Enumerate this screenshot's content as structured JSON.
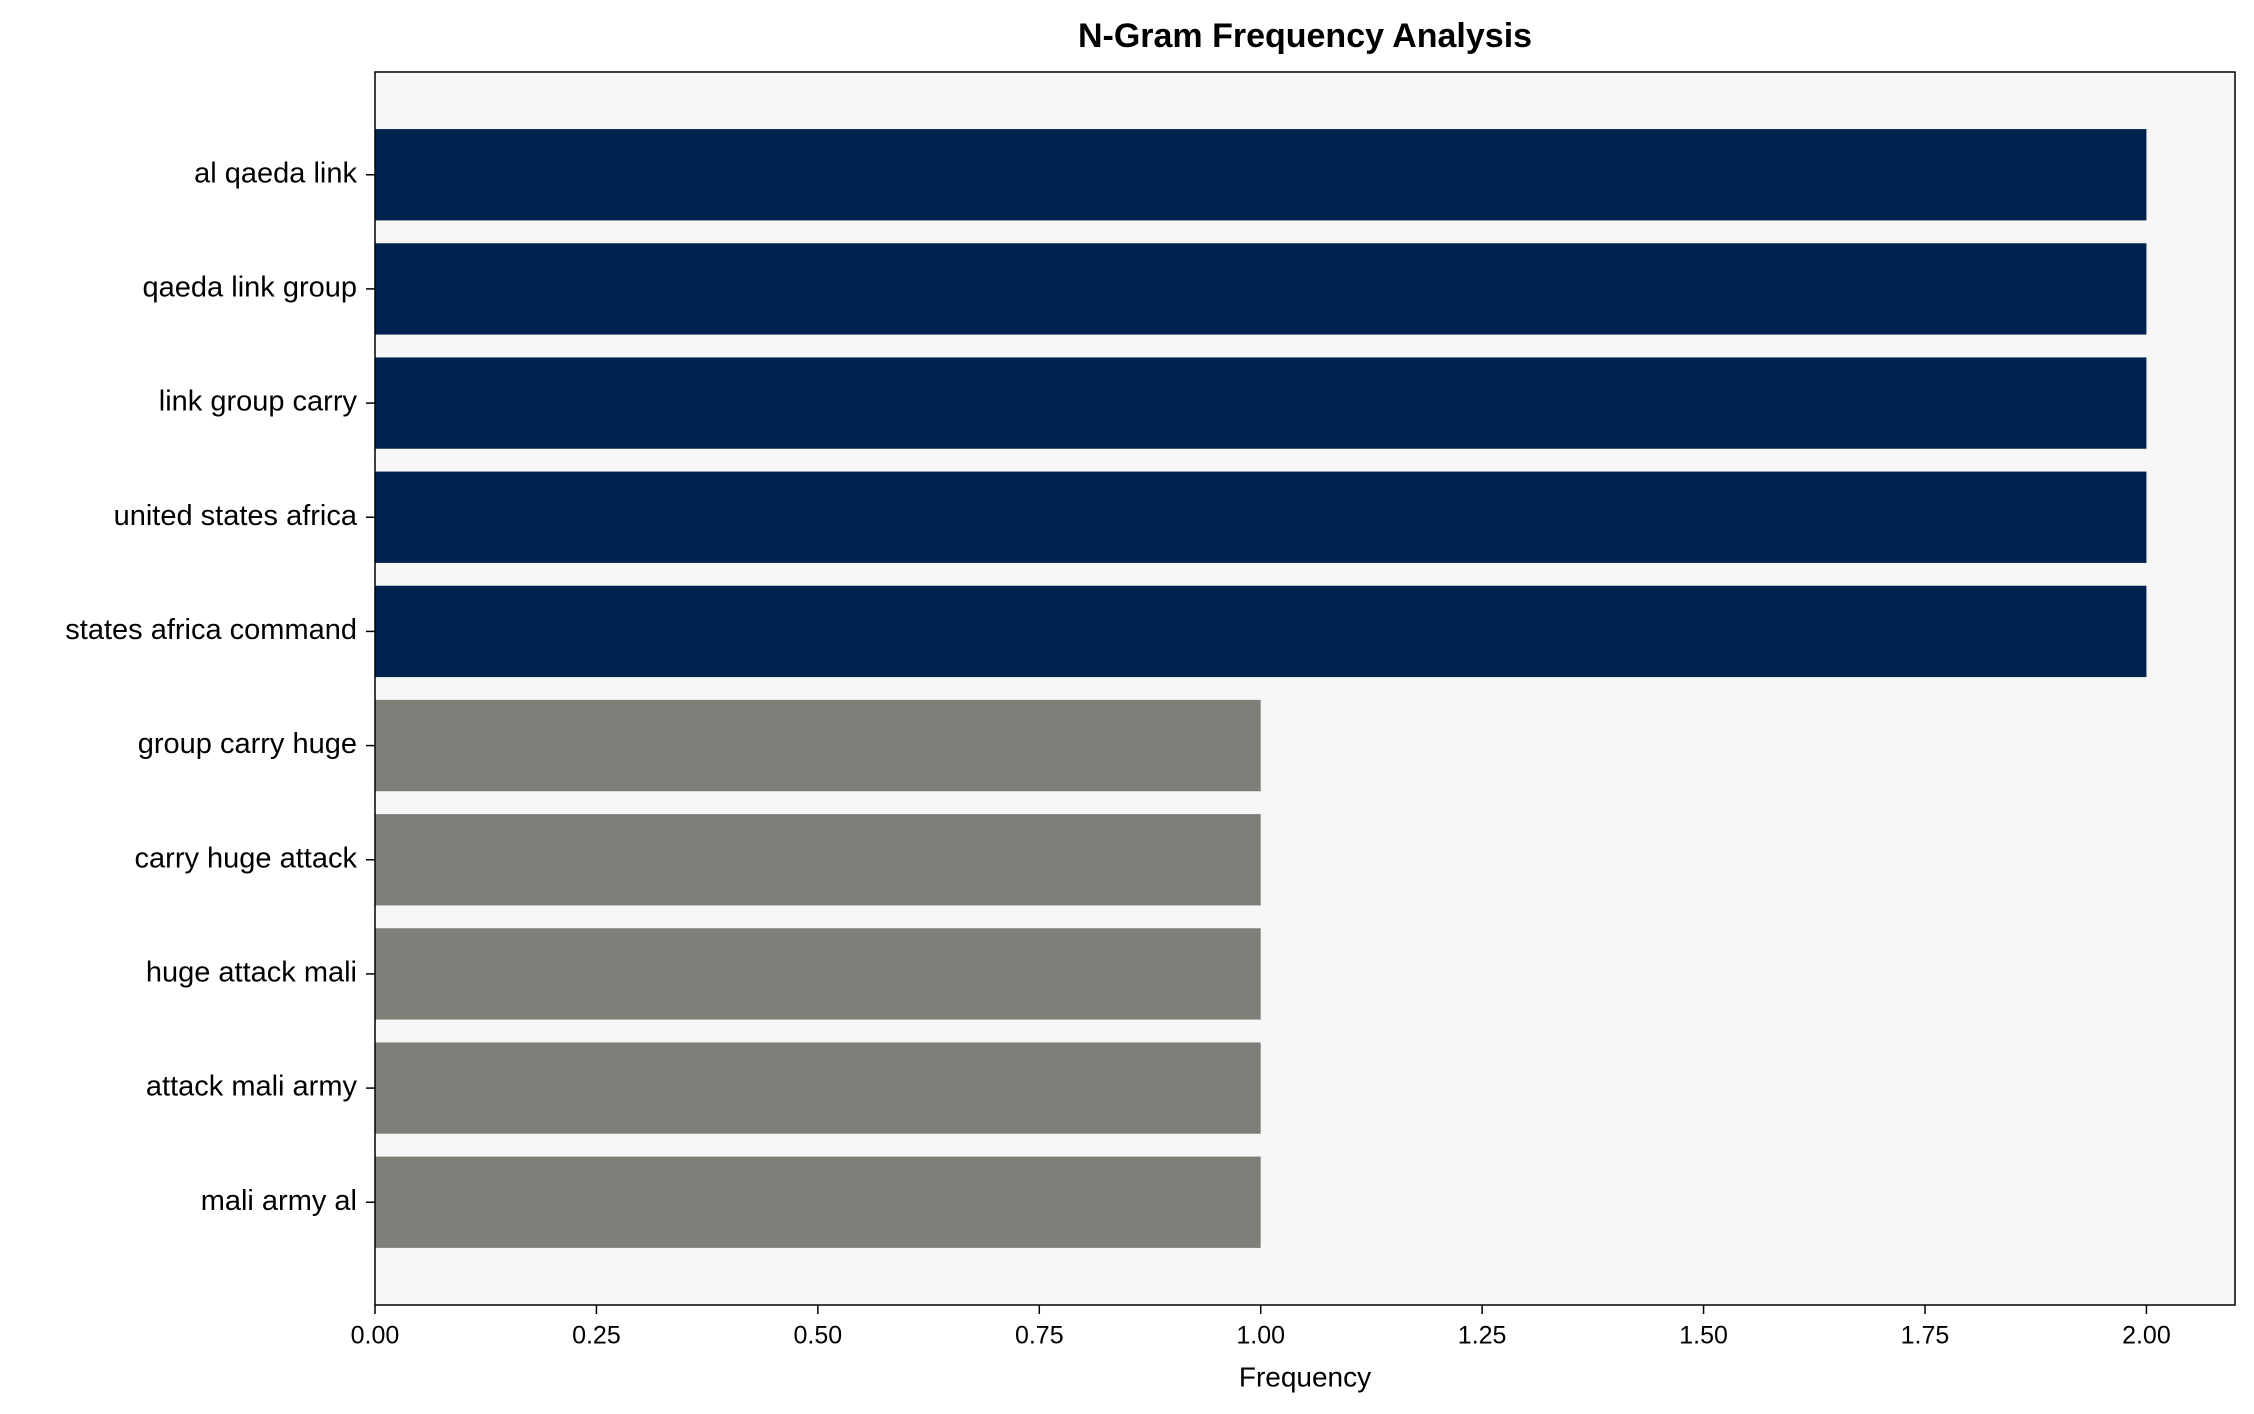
{
  "chart_data": {
    "type": "barh",
    "title": "N-Gram Frequency Analysis",
    "x_label": "Frequency",
    "categories": [
      "al qaeda link",
      "qaeda link group",
      "link group carry",
      "united states africa",
      "states africa command",
      "group carry huge",
      "carry huge attack",
      "huge attack mali",
      "attack mali army",
      "mali army al"
    ],
    "values": [
      2,
      2,
      2,
      2,
      2,
      1,
      1,
      1,
      1,
      1
    ],
    "colors": [
      "#00224e",
      "#00224e",
      "#00224e",
      "#00224e",
      "#00224e",
      "#7f7f7a",
      "#7f7f7a",
      "#7f7f7a",
      "#7f7f7a",
      "#7f7f7a"
    ],
    "xlim": [
      0,
      2.1
    ],
    "xticks": [
      {
        "value": 0,
        "label": "0.00"
      },
      0.25,
      {
        "value": 0.5,
        "label": "0.50"
      },
      0.75,
      {
        "value": 1,
        "label": "1.00"
      },
      1.25,
      {
        "value": 1.5,
        "label": "1.50"
      },
      1.75,
      {
        "value": 2,
        "label": "2.00"
      }
    ],
    "background": "#f7f7f7"
  }
}
